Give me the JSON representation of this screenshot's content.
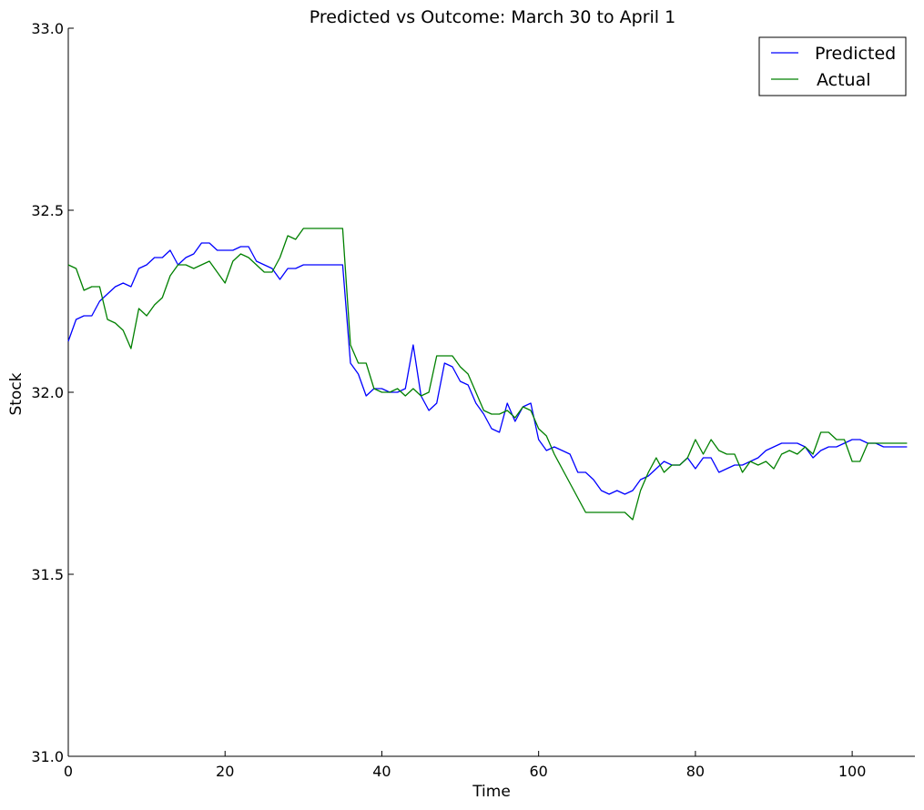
{
  "chart_data": {
    "type": "line",
    "title": "Predicted vs Outcome: March 30 to April 1",
    "xlabel": "Time",
    "ylabel": "Stock",
    "xlim": [
      0,
      108
    ],
    "ylim": [
      31.0,
      33.0
    ],
    "x_ticks": [
      0,
      20,
      40,
      60,
      80,
      100
    ],
    "y_ticks": [
      31.0,
      31.5,
      32.0,
      32.5,
      33.0
    ],
    "x_tick_labels": [
      "0",
      "20",
      "40",
      "60",
      "80",
      "100"
    ],
    "y_tick_labels": [
      "31.0",
      "31.5",
      "32.0",
      "32.5",
      "33.0"
    ],
    "grid": false,
    "legend_position": "top-right",
    "series": [
      {
        "name": "Predicted",
        "color": "#0000ff",
        "values": [
          32.14,
          32.2,
          32.21,
          32.21,
          32.25,
          32.27,
          32.29,
          32.3,
          32.29,
          32.34,
          32.35,
          32.37,
          32.37,
          32.39,
          32.35,
          32.37,
          32.38,
          32.41,
          32.41,
          32.39,
          32.39,
          32.39,
          32.4,
          32.4,
          32.36,
          32.35,
          32.34,
          32.31,
          32.34,
          32.34,
          32.35,
          32.35,
          32.35,
          32.35,
          32.35,
          32.35,
          32.08,
          32.05,
          31.99,
          32.01,
          32.01,
          32.0,
          32.0,
          32.01,
          32.13,
          31.99,
          31.95,
          31.97,
          32.08,
          32.07,
          32.03,
          32.02,
          31.97,
          31.94,
          31.9,
          31.89,
          31.97,
          31.92,
          31.96,
          31.97,
          31.87,
          31.84,
          31.85,
          31.84,
          31.83,
          31.78,
          31.78,
          31.76,
          31.73,
          31.72,
          31.73,
          31.72,
          31.73,
          31.76,
          31.77,
          31.79,
          31.81,
          31.8,
          31.8,
          31.82,
          31.79,
          31.82,
          31.82,
          31.78,
          31.79,
          31.8,
          31.8,
          31.81,
          31.82,
          31.84,
          31.85,
          31.86,
          31.86,
          31.86,
          31.85,
          31.82,
          31.84,
          31.85,
          31.85,
          31.86,
          31.87,
          31.87,
          31.86,
          31.86,
          31.85,
          31.85,
          31.85,
          31.85
        ]
      },
      {
        "name": "Actual",
        "color": "#008000",
        "values": [
          32.35,
          32.34,
          32.28,
          32.29,
          32.29,
          32.2,
          32.19,
          32.17,
          32.12,
          32.23,
          32.21,
          32.24,
          32.26,
          32.32,
          32.35,
          32.35,
          32.34,
          32.35,
          32.36,
          32.33,
          32.3,
          32.36,
          32.38,
          32.37,
          32.35,
          32.33,
          32.33,
          32.37,
          32.43,
          32.42,
          32.45,
          32.45,
          32.45,
          32.45,
          32.45,
          32.45,
          32.13,
          32.08,
          32.08,
          32.01,
          32.0,
          32.0,
          32.01,
          31.99,
          32.01,
          31.99,
          32.0,
          32.1,
          32.1,
          32.1,
          32.07,
          32.05,
          32.0,
          31.95,
          31.94,
          31.94,
          31.95,
          31.93,
          31.96,
          31.95,
          31.9,
          31.88,
          31.83,
          31.79,
          31.75,
          31.71,
          31.67,
          31.67,
          31.67,
          31.67,
          31.67,
          31.67,
          31.65,
          31.73,
          31.78,
          31.82,
          31.78,
          31.8,
          31.8,
          31.82,
          31.87,
          31.83,
          31.87,
          31.84,
          31.83,
          31.83,
          31.78,
          31.81,
          31.8,
          31.81,
          31.79,
          31.83,
          31.84,
          31.83,
          31.85,
          31.83,
          31.89,
          31.89,
          31.87,
          31.87,
          31.81,
          31.81,
          31.86,
          31.86,
          31.86,
          31.86,
          31.86,
          31.86
        ]
      }
    ]
  }
}
